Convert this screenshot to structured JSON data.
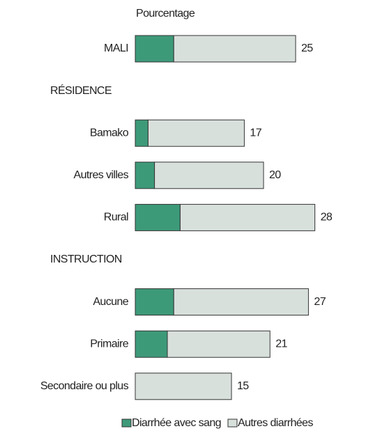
{
  "chart_data": {
    "type": "stacked-bar",
    "orientation": "horizontal",
    "x_label": "Pourcentage",
    "categories": [
      "MALI",
      "RÉSIDENCE",
      "Bamako",
      "Autres villes",
      "Rural",
      "INSTRUCTION",
      "Aucune",
      "Primaire",
      "Secondaire ou plus"
    ],
    "series": [
      {
        "name": "Diarrhée avec sang",
        "color": "#3d9a79",
        "values": [
          6,
          null,
          2,
          3,
          7,
          null,
          6,
          5,
          0
        ]
      },
      {
        "name": "Autres diarrhées",
        "color": "#d8e0dc",
        "values": [
          19,
          null,
          15,
          17,
          21,
          null,
          21,
          16,
          15
        ]
      }
    ],
    "totals": [
      25,
      null,
      17,
      20,
      28,
      null,
      27,
      21,
      15
    ],
    "legend": "bottom"
  }
}
